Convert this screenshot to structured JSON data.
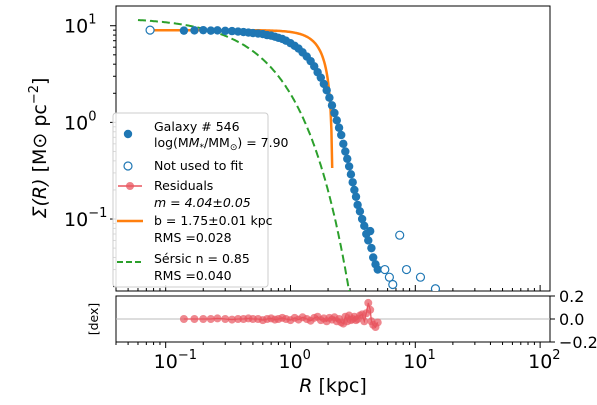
{
  "chart_data": [
    {
      "type": "scatter",
      "panel": "main",
      "xscale": "log",
      "yscale": "log",
      "xlim": [
        0.04,
        120
      ],
      "ylim": [
        0.018,
        16
      ],
      "xlabel_text": "R",
      "xlabel_unit": "[kpc]",
      "ylabel_text": "Σ(R)",
      "ylabel_unit": "[M",
      "ylabel_unit2": "pc",
      "ylabel_exp": "−2",
      "yticks": [
        {
          "value": 10,
          "base": "10",
          "exp": "1"
        },
        {
          "value": 1,
          "base": "10",
          "exp": "0"
        },
        {
          "value": 0.1,
          "base": "10",
          "exp": "−1"
        }
      ],
      "legend": {
        "placement": "lower-left",
        "galaxy_line1": "Galaxy # 546",
        "galaxy_line2": "log(M",
        "galaxy_line2_tail": "/M",
        "galaxy_line2_value": ") = 7.90",
        "not_used": "Not used to fit",
        "residuals": "Residuals",
        "fit_m": "m = 4.04±0.05",
        "fit_b": "b = 1.75±0.01 kpc",
        "fit_rms": "RMS =0.028",
        "sersic_n": "Sérsic n = 0.85",
        "sersic_rms": "RMS =0.040"
      },
      "colors": {
        "data": "#1f77b4",
        "fit": "#ff7f0e",
        "sersic": "#2ca02c",
        "residuals": "#e8555f"
      },
      "data_points": [
        [
          0.14,
          8.9
        ],
        [
          0.17,
          8.95
        ],
        [
          0.2,
          9.0
        ],
        [
          0.23,
          8.9
        ],
        [
          0.26,
          8.95
        ],
        [
          0.3,
          8.85
        ],
        [
          0.34,
          8.8
        ],
        [
          0.38,
          8.7
        ],
        [
          0.42,
          8.6
        ],
        [
          0.46,
          8.5
        ],
        [
          0.5,
          8.4
        ],
        [
          0.55,
          8.3
        ],
        [
          0.6,
          8.2
        ],
        [
          0.65,
          8.0
        ],
        [
          0.7,
          7.9
        ],
        [
          0.75,
          7.7
        ],
        [
          0.8,
          7.5
        ],
        [
          0.86,
          7.3
        ],
        [
          0.92,
          7.0
        ],
        [
          1.0,
          6.6
        ],
        [
          1.08,
          6.2
        ],
        [
          1.16,
          5.8
        ],
        [
          1.25,
          5.3
        ],
        [
          1.35,
          4.8
        ],
        [
          1.45,
          4.3
        ],
        [
          1.55,
          3.8
        ],
        [
          1.65,
          3.3
        ],
        [
          1.75,
          2.9
        ],
        [
          1.85,
          2.5
        ],
        [
          1.95,
          2.15
        ],
        [
          2.05,
          1.8
        ],
        [
          2.15,
          1.5
        ],
        [
          2.25,
          1.25
        ],
        [
          2.35,
          1.05
        ],
        [
          2.45,
          0.88
        ],
        [
          2.55,
          0.74
        ],
        [
          2.65,
          0.6
        ],
        [
          2.75,
          0.5
        ],
        [
          2.85,
          0.42
        ],
        [
          2.95,
          0.35
        ],
        [
          3.05,
          0.29
        ],
        [
          3.15,
          0.24
        ],
        [
          3.25,
          0.2
        ],
        [
          3.35,
          0.17
        ],
        [
          3.45,
          0.14
        ],
        [
          3.6,
          0.12
        ],
        [
          3.75,
          0.1
        ],
        [
          3.9,
          0.085
        ],
        [
          4.05,
          0.07
        ],
        [
          4.2,
          0.06
        ],
        [
          4.35,
          0.075
        ],
        [
          4.45,
          0.05
        ],
        [
          4.6,
          0.04
        ],
        [
          4.8,
          0.034
        ],
        [
          5.0,
          0.03
        ]
      ],
      "excluded_points": [
        [
          0.075,
          9.0
        ],
        [
          5.7,
          0.03
        ],
        [
          6.2,
          0.025
        ],
        [
          6.6,
          0.021
        ],
        [
          7.5,
          0.068
        ],
        [
          8.5,
          0.03
        ],
        [
          11.0,
          0.025
        ],
        [
          14.5,
          0.019
        ]
      ],
      "fit_curve": {
        "x_range": [
          0.07,
          5.9
        ]
      },
      "sersic_curve": {
        "x_range": [
          0.06,
          6.2
        ]
      }
    },
    {
      "type": "scatter",
      "panel": "residuals",
      "ylabel": "[dex]",
      "ylim": [
        -0.2,
        0.2
      ],
      "yticks": [
        "0.2",
        "0.0",
        "−0.2"
      ],
      "xticks": [
        {
          "value": 0.1,
          "base": "10",
          "exp": "−1"
        },
        {
          "value": 1,
          "base": "10",
          "exp": "0"
        },
        {
          "value": 10,
          "base": "10",
          "exp": "1"
        },
        {
          "value": 100,
          "base": "10",
          "exp": "2"
        }
      ],
      "residuals": [
        [
          0.14,
          0.0
        ],
        [
          0.17,
          0.0
        ],
        [
          0.2,
          0.0
        ],
        [
          0.23,
          0.0
        ],
        [
          0.26,
          0.005
        ],
        [
          0.3,
          0.0
        ],
        [
          0.34,
          -0.005
        ],
        [
          0.38,
          0.0
        ],
        [
          0.42,
          0.0
        ],
        [
          0.46,
          0.005
        ],
        [
          0.5,
          0.0
        ],
        [
          0.55,
          0.0
        ],
        [
          0.6,
          -0.01
        ],
        [
          0.65,
          0.0
        ],
        [
          0.7,
          0.005
        ],
        [
          0.75,
          -0.005
        ],
        [
          0.8,
          0.0
        ],
        [
          0.86,
          0.01
        ],
        [
          0.92,
          0.0
        ],
        [
          1.0,
          -0.01
        ],
        [
          1.08,
          0.01
        ],
        [
          1.16,
          -0.005
        ],
        [
          1.25,
          0.015
        ],
        [
          1.35,
          0.0
        ],
        [
          1.45,
          -0.015
        ],
        [
          1.55,
          0.01
        ],
        [
          1.65,
          0.02
        ],
        [
          1.75,
          -0.01
        ],
        [
          1.85,
          0.005
        ],
        [
          1.95,
          -0.02
        ],
        [
          2.05,
          0.01
        ],
        [
          2.15,
          -0.005
        ],
        [
          2.25,
          0.015
        ],
        [
          2.35,
          -0.02
        ],
        [
          2.45,
          0.0
        ],
        [
          2.55,
          -0.03
        ],
        [
          2.65,
          -0.04
        ],
        [
          2.75,
          0.02
        ],
        [
          2.85,
          -0.02
        ],
        [
          2.95,
          0.03
        ],
        [
          3.05,
          -0.01
        ],
        [
          3.15,
          0.0
        ],
        [
          3.25,
          0.02
        ],
        [
          3.35,
          -0.01
        ],
        [
          3.45,
          0.0
        ],
        [
          3.6,
          0.03
        ],
        [
          3.75,
          0.04
        ],
        [
          3.9,
          -0.02
        ],
        [
          4.05,
          0.05
        ],
        [
          4.2,
          0.14
        ],
        [
          4.35,
          0.08
        ],
        [
          4.45,
          -0.02
        ],
        [
          4.6,
          -0.05
        ],
        [
          4.8,
          -0.07
        ],
        [
          5.0,
          -0.03
        ]
      ]
    }
  ]
}
